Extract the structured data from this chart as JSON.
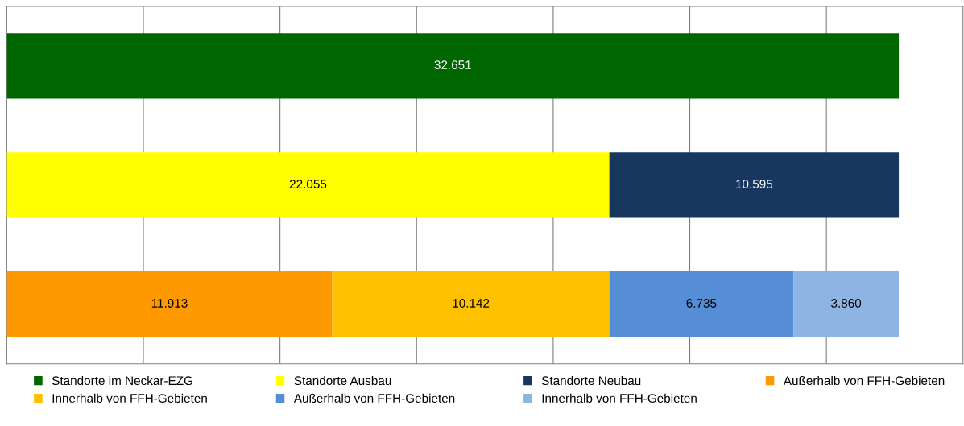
{
  "chart_data": {
    "type": "bar",
    "orientation": "horizontal",
    "stacked": true,
    "categories": [
      null,
      null,
      null
    ],
    "series": [
      {
        "name": "Standorte im Neckar-EZG",
        "color": "#006600",
        "values": [
          32651,
          null,
          null
        ],
        "value_labels": [
          "32.651",
          null,
          null
        ]
      },
      {
        "name": "Standorte Ausbau",
        "color": "#ffff00",
        "values": [
          null,
          22055,
          null
        ],
        "value_labels": [
          null,
          "22.055",
          null
        ]
      },
      {
        "name": "Standorte Neubau",
        "color": "#17375e",
        "values": [
          null,
          10595,
          null
        ],
        "value_labels": [
          null,
          "10.595",
          null
        ]
      },
      {
        "name": "Außerhalb von FFH-Gebieten",
        "color": "#ff9900",
        "values": [
          null,
          null,
          11913
        ],
        "value_labels": [
          null,
          null,
          "11.913"
        ]
      },
      {
        "name": "Innerhalb von FFH-Gebieten",
        "color": "#ffc000",
        "values": [
          null,
          null,
          10142
        ],
        "value_labels": [
          null,
          null,
          "10.142"
        ]
      },
      {
        "name": "Außerhalb von FFH-Gebieten",
        "color": "#558ed5",
        "values": [
          null,
          null,
          6735
        ],
        "value_labels": [
          null,
          null,
          "6.735"
        ]
      },
      {
        "name": "Innerhalb von FFH-Gebieten",
        "color": "#8eb4e3",
        "values": [
          null,
          null,
          3860
        ],
        "value_labels": [
          null,
          null,
          "3.860"
        ]
      }
    ],
    "xlim": [
      0,
      35000
    ],
    "xticks": [
      {
        "value": 5000,
        "label": null
      },
      {
        "value": 10000,
        "label": null
      },
      {
        "value": 15000,
        "label": null
      },
      {
        "value": 20000,
        "label": null
      },
      {
        "value": 25000,
        "label": null
      },
      {
        "value": 30000,
        "label": null
      }
    ],
    "grid": "x",
    "legend": "bottom"
  }
}
